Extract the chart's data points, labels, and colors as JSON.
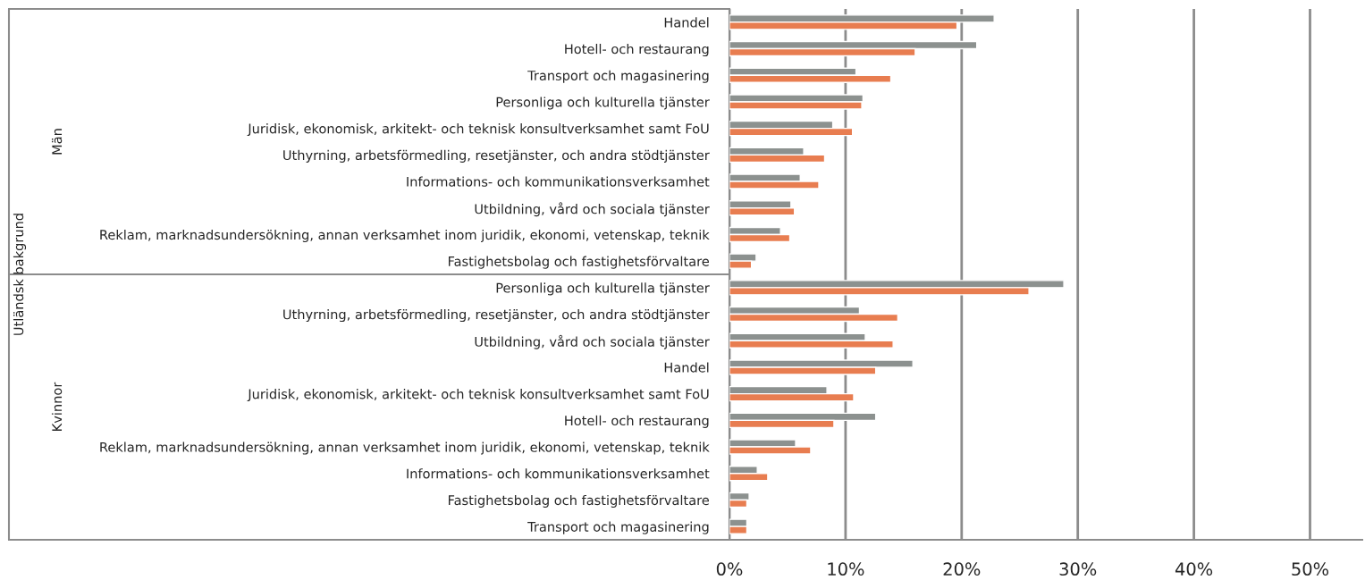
{
  "chart_data": {
    "type": "bar",
    "orientation": "horizontal",
    "categories": [
      "Handel",
      "Hotell- och restaurang",
      "Transport och magasinering",
      "Personliga och kulturella tjänster",
      "Juridisk, ekonomisk, arkitekt- och teknisk konsultverksamhet samt FoU",
      "Uthyrning, arbetsförmedling, resetjänster, och andra stödtjänster",
      "Informations- och kommunikationsverksamhet",
      "Utbildning, vård och sociala tjänster",
      "Reklam, marknadsundersökning, annan verksamhet inom juridik, ekonomi, vetenskap, teknik",
      "Fastighetsbolag och fastighetsförvaltare",
      "Personliga och kulturella tjänster",
      "Uthyrning, arbetsförmedling, resetjänster, och andra stödtjänster",
      "Utbildning, vård och sociala tjänster",
      "Handel",
      "Juridisk, ekonomisk, arkitekt- och teknisk konsultverksamhet samt FoU",
      "Hotell- och restaurang",
      "Reklam, marknadsundersökning, annan verksamhet inom juridik, ekonomi, vetenskap, teknik",
      "Informations- och kommunikationsverksamhet",
      "Fastighetsbolag och fastighetsförvaltare",
      "Transport och magasinering"
    ],
    "series": [
      {
        "color": "#8c918f",
        "values": [
          22.8,
          21.3,
          10.9,
          11.5,
          8.9,
          6.4,
          6.1,
          5.3,
          4.4,
          2.3,
          28.8,
          11.2,
          11.7,
          15.8,
          8.4,
          12.6,
          5.7,
          2.4,
          1.7,
          1.5
        ]
      },
      {
        "color": "#e87d50",
        "values": [
          19.6,
          16.0,
          13.9,
          11.4,
          10.6,
          8.2,
          7.7,
          5.6,
          5.2,
          1.9,
          25.8,
          14.5,
          14.1,
          12.6,
          10.7,
          9.0,
          7.0,
          3.3,
          1.5,
          1.5
        ]
      }
    ],
    "xlim": [
      0,
      54.5
    ],
    "xticks": [
      {
        "value": 0,
        "label": "0%"
      },
      {
        "value": 10,
        "label": "10%"
      },
      {
        "value": 20,
        "label": "20%"
      },
      {
        "value": 30,
        "label": "30%"
      },
      {
        "value": 40,
        "label": "40%"
      },
      {
        "value": 50,
        "label": "50%"
      }
    ],
    "grid": "x",
    "annotations": [
      "Utländsk bakgrund",
      "Män",
      "Kvinnor"
    ]
  }
}
